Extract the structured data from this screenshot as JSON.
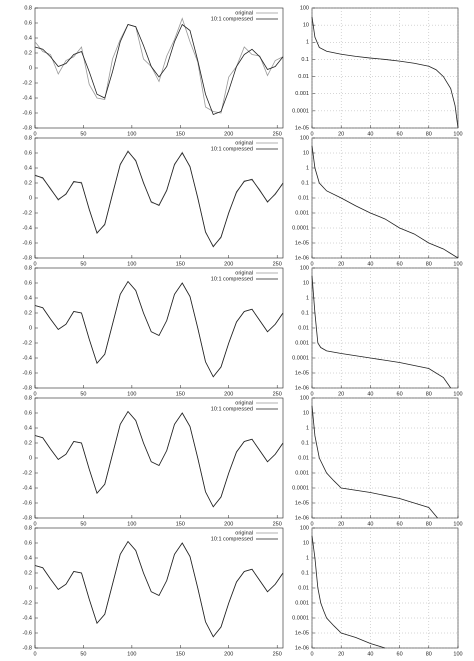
{
  "chart_data": [
    {
      "type": "line",
      "x": [
        0,
        8,
        16,
        24,
        32,
        40,
        48,
        56,
        64,
        72,
        80,
        88,
        96,
        104,
        112,
        120,
        128,
        136,
        144,
        152,
        160,
        168,
        176,
        184,
        192,
        200,
        208,
        216,
        224,
        232,
        240,
        248,
        256
      ],
      "series": [
        {
          "name": "original",
          "color": "#999999",
          "values": [
            0.35,
            0.22,
            0.18,
            -0.08,
            0.1,
            0.15,
            0.28,
            -0.22,
            -0.4,
            -0.42,
            0.12,
            0.38,
            0.58,
            0.55,
            0.12,
            0.02,
            -0.18,
            0.16,
            0.38,
            0.66,
            0.35,
            0.08,
            -0.52,
            -0.58,
            -0.6,
            -0.12,
            0.02,
            0.28,
            0.18,
            0.16,
            -0.1,
            0.1,
            0.15
          ]
        },
        {
          "name": "10:1 compressed",
          "color": "#222222",
          "values": [
            0.28,
            0.25,
            0.15,
            0.02,
            0.06,
            0.18,
            0.22,
            -0.05,
            -0.35,
            -0.4,
            -0.05,
            0.35,
            0.58,
            0.55,
            0.3,
            0.02,
            -0.12,
            0.02,
            0.35,
            0.58,
            0.5,
            0.1,
            -0.35,
            -0.62,
            -0.58,
            -0.3,
            0.02,
            0.18,
            0.25,
            0.15,
            -0.02,
            0.02,
            0.15
          ]
        }
      ],
      "xlim": [
        0,
        256
      ],
      "xticks": [
        0,
        50,
        100,
        150,
        200,
        250
      ],
      "ylim": [
        -0.8,
        0.8
      ],
      "yticks": [
        -0.8,
        -0.6,
        -0.4,
        -0.2,
        0,
        0.2,
        0.4,
        0.6,
        0.8
      ],
      "legend": "top-right"
    },
    {
      "type": "line",
      "log_y": true,
      "grid": true,
      "color": "#222222",
      "x": [
        0,
        2,
        5,
        10,
        20,
        30,
        40,
        50,
        60,
        70,
        80,
        85,
        90,
        95,
        98,
        100
      ],
      "values": [
        30,
        2,
        0.5,
        0.3,
        0.2,
        0.15,
        0.12,
        0.1,
        0.08,
        0.06,
        0.04,
        0.025,
        0.01,
        0.002,
        0.0002,
        1e-05
      ],
      "xlim": [
        0,
        100
      ],
      "xticks": [
        0,
        20,
        40,
        60,
        80,
        100
      ],
      "ylim": [
        1e-05,
        100
      ],
      "yticks": [
        {
          "value": 1e-05,
          "label": "1e-05"
        },
        0.0001,
        0.001,
        0.01,
        0.1,
        1,
        10,
        100
      ]
    },
    {
      "type": "line",
      "x": [
        0,
        8,
        16,
        24,
        32,
        40,
        48,
        56,
        64,
        72,
        80,
        88,
        96,
        104,
        112,
        120,
        128,
        136,
        144,
        152,
        160,
        168,
        176,
        184,
        192,
        200,
        208,
        216,
        224,
        232,
        240,
        248,
        256
      ],
      "series": [
        {
          "name": "original",
          "color": "#999999",
          "values": [
            0.31,
            0.26,
            0.13,
            -0.03,
            0.06,
            0.21,
            0.21,
            -0.16,
            -0.46,
            -0.36,
            0.06,
            0.44,
            0.63,
            0.49,
            0.21,
            -0.06,
            -0.09,
            0.11,
            0.44,
            0.61,
            0.41,
            0.01,
            -0.46,
            -0.64,
            -0.53,
            -0.19,
            0.07,
            0.23,
            0.24,
            0.11,
            -0.06,
            0.06,
            0.19
          ]
        },
        {
          "name": "10:1 compressed",
          "color": "#222222",
          "values": [
            0.3,
            0.27,
            0.12,
            -0.02,
            0.05,
            0.22,
            0.2,
            -0.15,
            -0.47,
            -0.35,
            0.05,
            0.45,
            0.62,
            0.5,
            0.2,
            -0.05,
            -0.1,
            0.1,
            0.45,
            0.6,
            0.42,
            0.0,
            -0.45,
            -0.65,
            -0.52,
            -0.2,
            0.08,
            0.22,
            0.25,
            0.1,
            -0.05,
            0.05,
            0.2
          ]
        }
      ],
      "xlim": [
        0,
        256
      ],
      "xticks": [
        0,
        50,
        100,
        150,
        200,
        250
      ],
      "ylim": [
        -0.8,
        0.8
      ],
      "yticks": [
        -0.8,
        -0.6,
        -0.4,
        -0.2,
        0,
        0.2,
        0.4,
        0.6,
        0.8
      ],
      "legend": "top-right"
    },
    {
      "type": "line",
      "log_y": true,
      "grid": true,
      "color": "#222222",
      "x": [
        0,
        2,
        5,
        10,
        20,
        30,
        40,
        50,
        60,
        70,
        80,
        90,
        95,
        100
      ],
      "values": [
        30,
        1,
        0.1,
        0.03,
        0.01,
        0.003,
        0.001,
        0.0004,
        0.0001,
        4e-05,
        1e-05,
        4e-06,
        2e-06,
        1e-06
      ],
      "xlim": [
        0,
        100
      ],
      "xticks": [
        0,
        20,
        40,
        60,
        80,
        100
      ],
      "ylim": [
        1e-06,
        100
      ],
      "yticks": [
        {
          "value": 1e-06,
          "label": "1e-06"
        },
        {
          "value": 1e-05,
          "label": "1e-05"
        },
        0.0001,
        0.001,
        0.01,
        0.1,
        1,
        10,
        100
      ]
    },
    {
      "type": "line",
      "x": [
        0,
        8,
        16,
        24,
        32,
        40,
        48,
        56,
        64,
        72,
        80,
        88,
        96,
        104,
        112,
        120,
        128,
        136,
        144,
        152,
        160,
        168,
        176,
        184,
        192,
        200,
        208,
        216,
        224,
        232,
        240,
        248,
        256
      ],
      "series": [
        {
          "name": "original",
          "color": "#999999",
          "values": [
            0.3,
            0.27,
            0.12,
            -0.02,
            0.05,
            0.22,
            0.2,
            -0.15,
            -0.47,
            -0.35,
            0.05,
            0.45,
            0.62,
            0.5,
            0.2,
            -0.05,
            -0.1,
            0.1,
            0.45,
            0.6,
            0.42,
            0.0,
            -0.45,
            -0.65,
            -0.52,
            -0.2,
            0.08,
            0.22,
            0.25,
            0.1,
            -0.05,
            0.05,
            0.2
          ]
        },
        {
          "name": "10:1 compressed",
          "color": "#222222",
          "values": [
            0.3,
            0.27,
            0.12,
            -0.02,
            0.05,
            0.22,
            0.2,
            -0.15,
            -0.47,
            -0.35,
            0.05,
            0.45,
            0.62,
            0.5,
            0.2,
            -0.05,
            -0.1,
            0.1,
            0.45,
            0.6,
            0.42,
            0.0,
            -0.45,
            -0.65,
            -0.52,
            -0.2,
            0.08,
            0.22,
            0.25,
            0.1,
            -0.05,
            0.05,
            0.2
          ]
        }
      ],
      "xlim": [
        0,
        256
      ],
      "xticks": [
        0,
        50,
        100,
        150,
        200,
        250
      ],
      "ylim": [
        -0.8,
        0.8
      ],
      "yticks": [
        -0.8,
        -0.6,
        -0.4,
        -0.2,
        0,
        0.2,
        0.4,
        0.6,
        0.8
      ],
      "legend": "top-right"
    },
    {
      "type": "line",
      "log_y": true,
      "grid": true,
      "color": "#222222",
      "x": [
        0,
        2,
        4,
        6,
        10,
        20,
        40,
        60,
        80,
        90,
        95
      ],
      "values": [
        30,
        0.1,
        0.001,
        0.0005,
        0.0003,
        0.0002,
        0.0001,
        5e-05,
        2e-05,
        5e-06,
        1e-06
      ],
      "xlim": [
        0,
        100
      ],
      "xticks": [
        0,
        20,
        40,
        60,
        80,
        100
      ],
      "ylim": [
        1e-06,
        100
      ],
      "yticks": [
        {
          "value": 1e-06,
          "label": "1e-06"
        },
        {
          "value": 1e-05,
          "label": "1e-05"
        },
        0.0001,
        0.001,
        0.01,
        0.1,
        1,
        10,
        100
      ]
    },
    {
      "type": "line",
      "x": [
        0,
        8,
        16,
        24,
        32,
        40,
        48,
        56,
        64,
        72,
        80,
        88,
        96,
        104,
        112,
        120,
        128,
        136,
        144,
        152,
        160,
        168,
        176,
        184,
        192,
        200,
        208,
        216,
        224,
        232,
        240,
        248,
        256
      ],
      "series": [
        {
          "name": "original",
          "color": "#999999",
          "values": [
            0.3,
            0.27,
            0.12,
            -0.02,
            0.05,
            0.22,
            0.2,
            -0.15,
            -0.47,
            -0.35,
            0.05,
            0.45,
            0.62,
            0.5,
            0.2,
            -0.05,
            -0.1,
            0.1,
            0.45,
            0.6,
            0.42,
            0.0,
            -0.45,
            -0.65,
            -0.52,
            -0.2,
            0.08,
            0.22,
            0.25,
            0.1,
            -0.05,
            0.05,
            0.2
          ]
        },
        {
          "name": "10:1 compressed",
          "color": "#222222",
          "values": [
            0.3,
            0.27,
            0.12,
            -0.02,
            0.05,
            0.22,
            0.2,
            -0.15,
            -0.47,
            -0.35,
            0.05,
            0.45,
            0.62,
            0.5,
            0.2,
            -0.05,
            -0.1,
            0.1,
            0.45,
            0.6,
            0.42,
            0.0,
            -0.45,
            -0.65,
            -0.52,
            -0.2,
            0.08,
            0.22,
            0.25,
            0.1,
            -0.05,
            0.05,
            0.2
          ]
        }
      ],
      "xlim": [
        0,
        256
      ],
      "xticks": [
        0,
        50,
        100,
        150,
        200,
        250
      ],
      "ylim": [
        -0.8,
        0.8
      ],
      "yticks": [
        -0.8,
        -0.6,
        -0.4,
        -0.2,
        0,
        0.2,
        0.4,
        0.6,
        0.8
      ],
      "legend": "top-right"
    },
    {
      "type": "line",
      "log_y": true,
      "grid": true,
      "color": "#222222",
      "x": [
        0,
        2,
        5,
        10,
        15,
        20,
        40,
        60,
        80,
        86
      ],
      "values": [
        30,
        0.3,
        0.01,
        0.001,
        0.0003,
        0.0001,
        5e-05,
        2e-05,
        5e-06,
        1e-06
      ],
      "xlim": [
        0,
        100
      ],
      "xticks": [
        0,
        20,
        40,
        60,
        80,
        100
      ],
      "ylim": [
        1e-06,
        100
      ],
      "yticks": [
        {
          "value": 1e-06,
          "label": "1e-06"
        },
        {
          "value": 1e-05,
          "label": "1e-05"
        },
        0.0001,
        0.001,
        0.01,
        0.1,
        1,
        10,
        100
      ]
    },
    {
      "type": "line",
      "x": [
        0,
        8,
        16,
        24,
        32,
        40,
        48,
        56,
        64,
        72,
        80,
        88,
        96,
        104,
        112,
        120,
        128,
        136,
        144,
        152,
        160,
        168,
        176,
        184,
        192,
        200,
        208,
        216,
        224,
        232,
        240,
        248,
        256
      ],
      "series": [
        {
          "name": "original",
          "color": "#999999",
          "values": [
            0.3,
            0.27,
            0.12,
            -0.02,
            0.05,
            0.22,
            0.2,
            -0.15,
            -0.47,
            -0.35,
            0.05,
            0.45,
            0.62,
            0.5,
            0.2,
            -0.05,
            -0.1,
            0.1,
            0.45,
            0.6,
            0.42,
            0.0,
            -0.45,
            -0.65,
            -0.52,
            -0.2,
            0.08,
            0.22,
            0.25,
            0.1,
            -0.05,
            0.05,
            0.2
          ]
        },
        {
          "name": "10:1 compressed",
          "color": "#222222",
          "values": [
            0.3,
            0.27,
            0.12,
            -0.02,
            0.05,
            0.22,
            0.2,
            -0.15,
            -0.47,
            -0.35,
            0.05,
            0.45,
            0.62,
            0.5,
            0.2,
            -0.05,
            -0.1,
            0.1,
            0.45,
            0.6,
            0.42,
            0.0,
            -0.45,
            -0.65,
            -0.52,
            -0.2,
            0.08,
            0.22,
            0.25,
            0.1,
            -0.05,
            0.05,
            0.2
          ]
        }
      ],
      "xlim": [
        0,
        256
      ],
      "xticks": [
        0,
        50,
        100,
        150,
        200,
        250
      ],
      "ylim": [
        -0.8,
        0.8
      ],
      "yticks": [
        -0.8,
        -0.6,
        -0.4,
        -0.2,
        0,
        0.2,
        0.4,
        0.6,
        0.8
      ],
      "legend": "top-right"
    },
    {
      "type": "line",
      "log_y": true,
      "grid": true,
      "color": "#222222",
      "x": [
        0,
        2,
        4,
        6,
        8,
        10,
        15,
        20,
        30,
        40,
        50
      ],
      "values": [
        30,
        1,
        0.01,
        0.001,
        0.0003,
        0.0001,
        3e-05,
        1e-05,
        5e-06,
        2e-06,
        1e-06
      ],
      "xlim": [
        0,
        100
      ],
      "xticks": [
        0,
        20,
        40,
        60,
        80,
        100
      ],
      "ylim": [
        1e-06,
        100
      ],
      "yticks": [
        {
          "value": 1e-06,
          "label": "1e-06"
        },
        {
          "value": 1e-05,
          "label": "1e-05"
        },
        0.0001,
        0.001,
        0.01,
        0.1,
        1,
        10,
        100
      ]
    }
  ]
}
